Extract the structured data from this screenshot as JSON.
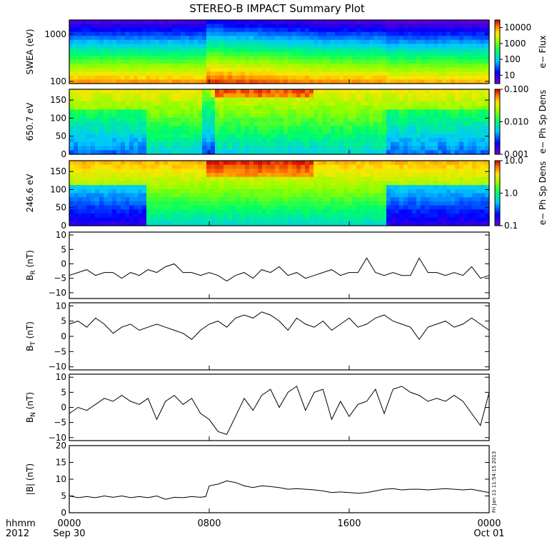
{
  "title": "STEREO-B IMPACT Summary Plot",
  "x_axis": {
    "corner_labels": [
      "hhmm",
      "2012"
    ],
    "ticks": [
      {
        "value": 0,
        "label": "0000",
        "sub": "Sep 30"
      },
      {
        "value": 8,
        "label": "0800",
        "sub": ""
      },
      {
        "value": 16,
        "label": "1600",
        "sub": ""
      },
      {
        "value": 24,
        "label": "0000",
        "sub": "Oct 01"
      }
    ],
    "xlim": [
      0,
      24
    ],
    "unit": "hours"
  },
  "side_stamp": "Fri Jan 11 11:54:15 2013",
  "chart_data": [
    {
      "type": "heatmap",
      "ylabel": "SWEA (eV)",
      "ylog": true,
      "ylim": [
        90,
        2000
      ],
      "yticks": [
        {
          "v": 100,
          "l": "100"
        },
        {
          "v": 1000,
          "l": "1000"
        }
      ],
      "colorbar": {
        "label": "e− Flux",
        "log": true,
        "range": [
          3,
          30000
        ],
        "ticks": [
          {
            "v": 10,
            "l": "10"
          },
          {
            "v": 100,
            "l": "100"
          },
          {
            "v": 1000,
            "l": "1000"
          },
          {
            "v": 10000,
            "l": "10000"
          }
        ]
      }
    },
    {
      "type": "heatmap",
      "ylabel": "650.7 eV",
      "ylog": false,
      "ylim": [
        0,
        180
      ],
      "yticks": [
        {
          "v": 0,
          "l": "0"
        },
        {
          "v": 50,
          "l": "50"
        },
        {
          "v": 100,
          "l": "100"
        },
        {
          "v": 150,
          "l": "150"
        }
      ],
      "colorbar": {
        "label": "e− Ph Sp Dens",
        "log": true,
        "range": [
          0.001,
          0.1
        ],
        "ticks": [
          {
            "v": 0.001,
            "l": "0.001"
          },
          {
            "v": 0.01,
            "l": "0.010"
          },
          {
            "v": 0.1,
            "l": "0.100"
          }
        ]
      }
    },
    {
      "type": "heatmap",
      "ylabel": "246.6 eV",
      "ylog": false,
      "ylim": [
        0,
        180
      ],
      "yticks": [
        {
          "v": 0,
          "l": "0"
        },
        {
          "v": 50,
          "l": "50"
        },
        {
          "v": 100,
          "l": "100"
        },
        {
          "v": 150,
          "l": "150"
        }
      ],
      "colorbar": {
        "label": "e− Ph Sp Dens",
        "log": true,
        "range": [
          0.1,
          10
        ],
        "ticks": [
          {
            "v": 0.1,
            "l": "0.1"
          },
          {
            "v": 1,
            "l": "1.0"
          },
          {
            "v": 10,
            "l": "10.0"
          }
        ]
      }
    },
    {
      "type": "line",
      "ylabel": "B",
      "ysub": "R",
      "yunit": " (nT)",
      "ylim": [
        -12,
        11
      ],
      "yticks": [
        {
          "v": -10,
          "l": "−10"
        },
        {
          "v": -5,
          "l": "−5"
        },
        {
          "v": 0,
          "l": "0"
        },
        {
          "v": 5,
          "l": "5"
        },
        {
          "v": 10,
          "l": "10"
        }
      ],
      "x": [
        0,
        0.5,
        1,
        1.5,
        2,
        2.5,
        3,
        3.5,
        4,
        4.5,
        5,
        5.5,
        6,
        6.5,
        7,
        7.5,
        8,
        8.5,
        9,
        9.5,
        10,
        10.5,
        11,
        11.5,
        12,
        12.5,
        13,
        13.5,
        14,
        14.5,
        15,
        15.5,
        16,
        16.5,
        17,
        17.5,
        18,
        18.5,
        19,
        19.5,
        20,
        20.5,
        21,
        21.5,
        22,
        22.5,
        23,
        23.5,
        24
      ],
      "y": [
        -4,
        -3,
        -2,
        -4,
        -3,
        -3,
        -5,
        -3,
        -4,
        -2,
        -3,
        -1,
        0,
        -3,
        -3,
        -4,
        -3,
        -4,
        -6,
        -4,
        -3,
        -5,
        -2,
        -3,
        -1,
        -4,
        -3,
        -5,
        -4,
        -3,
        -2,
        -4,
        -3,
        -3,
        2,
        -3,
        -4,
        -3,
        -4,
        -4,
        2,
        -3,
        -3,
        -4,
        -3,
        -4,
        -1,
        -5,
        -4
      ]
    },
    {
      "type": "line",
      "ylabel": "B",
      "ysub": "T",
      "yunit": " (nT)",
      "ylim": [
        -11,
        11
      ],
      "yticks": [
        {
          "v": -10,
          "l": "−10"
        },
        {
          "v": -5,
          "l": "−5"
        },
        {
          "v": 0,
          "l": "0"
        },
        {
          "v": 5,
          "l": "5"
        },
        {
          "v": 10,
          "l": "10"
        }
      ],
      "x": [
        0,
        0.5,
        1,
        1.5,
        2,
        2.5,
        3,
        3.5,
        4,
        4.5,
        5,
        5.5,
        6,
        6.5,
        7,
        7.5,
        8,
        8.5,
        9,
        9.5,
        10,
        10.5,
        11,
        11.5,
        12,
        12.5,
        13,
        13.5,
        14,
        14.5,
        15,
        15.5,
        16,
        16.5,
        17,
        17.5,
        18,
        18.5,
        19,
        19.5,
        20,
        20.5,
        21,
        21.5,
        22,
        22.5,
        23,
        23.5,
        24
      ],
      "y": [
        4,
        5,
        3,
        6,
        4,
        1,
        3,
        4,
        2,
        3,
        4,
        3,
        2,
        1,
        -1,
        2,
        4,
        5,
        3,
        6,
        7,
        6,
        8,
        7,
        5,
        2,
        6,
        4,
        3,
        5,
        2,
        4,
        6,
        3,
        4,
        6,
        7,
        5,
        4,
        3,
        -1,
        3,
        4,
        5,
        3,
        4,
        6,
        4,
        2
      ]
    },
    {
      "type": "line",
      "ylabel": "B",
      "ysub": "N",
      "yunit": " (nT)",
      "ylim": [
        -11,
        11
      ],
      "yticks": [
        {
          "v": -10,
          "l": "−10"
        },
        {
          "v": -5,
          "l": "−5"
        },
        {
          "v": 0,
          "l": "0"
        },
        {
          "v": 5,
          "l": "5"
        },
        {
          "v": 10,
          "l": "10"
        }
      ],
      "x": [
        0,
        0.5,
        1,
        1.5,
        2,
        2.5,
        3,
        3.5,
        4,
        4.5,
        5,
        5.5,
        6,
        6.5,
        7,
        7.5,
        8,
        8.5,
        9,
        9.5,
        10,
        10.5,
        11,
        11.5,
        12,
        12.5,
        13,
        13.5,
        14,
        14.5,
        15,
        15.5,
        16,
        16.5,
        17,
        17.5,
        18,
        18.5,
        19,
        19.5,
        20,
        20.5,
        21,
        21.5,
        22,
        22.5,
        23,
        23.5,
        24
      ],
      "y": [
        -2,
        0,
        -1,
        1,
        3,
        2,
        4,
        2,
        1,
        3,
        -4,
        2,
        4,
        1,
        3,
        -2,
        -4,
        -8,
        -9,
        -3,
        3,
        -1,
        4,
        6,
        0,
        5,
        7,
        -1,
        5,
        6,
        -4,
        2,
        -3,
        1,
        2,
        6,
        -2,
        6,
        7,
        5,
        4,
        2,
        3,
        2,
        4,
        2,
        -2,
        -6,
        5
      ]
    },
    {
      "type": "line",
      "ylabel": "|B|",
      "ysub": "",
      "yunit": " (nT)",
      "ylim": [
        0,
        20
      ],
      "yticks": [
        {
          "v": 0,
          "l": "0"
        },
        {
          "v": 5,
          "l": "5"
        },
        {
          "v": 10,
          "l": "10"
        },
        {
          "v": 15,
          "l": "15"
        },
        {
          "v": 20,
          "l": "20"
        }
      ],
      "x": [
        0,
        0.5,
        1,
        1.5,
        2,
        2.5,
        3,
        3.5,
        4,
        4.5,
        5,
        5.5,
        6,
        6.5,
        7,
        7.5,
        7.8,
        8,
        8.5,
        9,
        9.5,
        10,
        10.5,
        11,
        11.5,
        12,
        12.5,
        13,
        13.5,
        14,
        14.5,
        15,
        15.5,
        16,
        16.5,
        17,
        17.5,
        18,
        18.5,
        19,
        19.5,
        20,
        20.5,
        21,
        21.5,
        22,
        22.5,
        23,
        23.5,
        24
      ],
      "y": [
        5,
        4.5,
        4.8,
        4.5,
        5,
        4.6,
        5,
        4.5,
        4.8,
        4.5,
        5,
        4,
        4.6,
        4.5,
        4.8,
        4.6,
        4.8,
        8,
        8.5,
        9.5,
        9,
        8,
        7.5,
        8,
        7.8,
        7.5,
        7,
        7.2,
        7,
        6.8,
        6.5,
        6,
        6.2,
        6,
        5.8,
        6,
        6.5,
        7,
        7.2,
        6.8,
        7,
        7,
        6.8,
        7,
        7.2,
        7,
        6.8,
        7,
        6.5,
        6
      ]
    }
  ],
  "colors": {
    "axis": "#000000",
    "line": "#000000",
    "background": "#ffffff"
  }
}
